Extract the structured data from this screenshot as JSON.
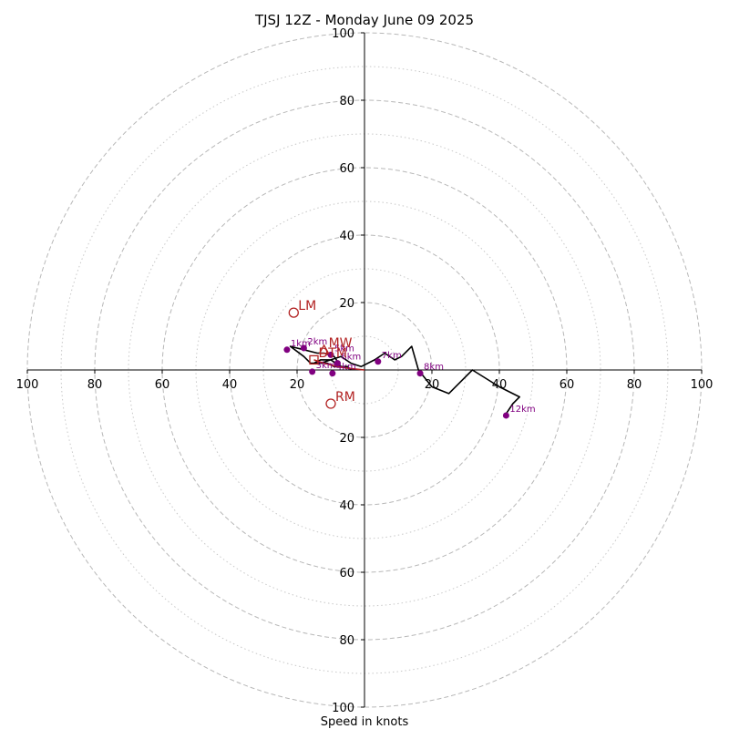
{
  "chart_data": {
    "type": "line",
    "title": "TJSJ 12Z - Monday June 09 2025",
    "xlabel": "Speed in knots",
    "xlim": [
      -100,
      100
    ],
    "ylim": [
      -100,
      100
    ],
    "ring_major": [
      20,
      40,
      60,
      80,
      100
    ],
    "ring_minor": [
      10,
      30,
      50,
      70,
      90
    ],
    "x_tick_labels": [
      "100",
      "80",
      "60",
      "40",
      "20",
      "20",
      "40",
      "60",
      "80",
      "100"
    ],
    "x_tick_values": [
      -100,
      -80,
      -60,
      -40,
      -20,
      20,
      40,
      60,
      80,
      100
    ],
    "y_tick_labels": [
      "100",
      "80",
      "60",
      "40",
      "20",
      "20",
      "40",
      "60",
      "80",
      "100"
    ],
    "y_tick_values": [
      100,
      80,
      60,
      40,
      20,
      -20,
      -40,
      -60,
      -80,
      -100
    ],
    "hodograph": {
      "color": "#000000",
      "u": [
        -4,
        -5,
        -7,
        -9,
        -11,
        -15,
        -13,
        -10,
        -7,
        -9,
        -12,
        -14,
        -18,
        -22,
        -18,
        -16,
        -13,
        -10,
        -7,
        -4,
        -1,
        3,
        6,
        9,
        11,
        14,
        16,
        20,
        25,
        32,
        40,
        46,
        44,
        42
      ],
      "v": [
        0,
        1,
        1,
        1,
        2,
        2,
        3,
        3,
        1,
        4,
        5,
        5,
        6,
        7,
        4,
        2,
        2,
        3,
        4,
        2,
        1,
        3,
        5,
        3,
        4,
        7,
        0,
        -5,
        -7,
        0,
        -5,
        -8,
        -10,
        -13
      ]
    },
    "height_markers": {
      "color": "#800080",
      "points": [
        {
          "label": "1km",
          "u": -23,
          "v": 6
        },
        {
          "label": "2km",
          "u": -18,
          "v": 6.5
        },
        {
          "label": "5km",
          "u": -10,
          "v": 4.5
        },
        {
          "label": "6km",
          "u": -8,
          "v": 2
        },
        {
          "label": "7km",
          "u": 4,
          "v": 2.5
        },
        {
          "label": "8km",
          "u": 16.5,
          "v": -1
        },
        {
          "label": "12km",
          "u": 42,
          "v": -13.5
        },
        {
          "label": "3km",
          "u": -15.5,
          "v": -0.5
        },
        {
          "label": "4km",
          "u": -9.5,
          "v": -1
        }
      ]
    },
    "shear_vector": {
      "color": "#b22222",
      "points": [
        [
          -15,
          3
        ],
        [
          -12,
          2
        ],
        [
          -8,
          1
        ],
        [
          -5,
          0.5
        ],
        [
          0,
          0
        ]
      ]
    },
    "markers": {
      "color": "#b22222",
      "points": [
        {
          "label": "LM",
          "u": -21,
          "v": 17,
          "shape": "circle"
        },
        {
          "label": "RM",
          "u": -10,
          "v": -10,
          "shape": "circle"
        },
        {
          "label": "MW",
          "u": -12,
          "v": 6,
          "shape": "triangle"
        },
        {
          "label": "DTM",
          "u": -15,
          "v": 3,
          "shape": "square"
        }
      ]
    },
    "grid": true
  }
}
